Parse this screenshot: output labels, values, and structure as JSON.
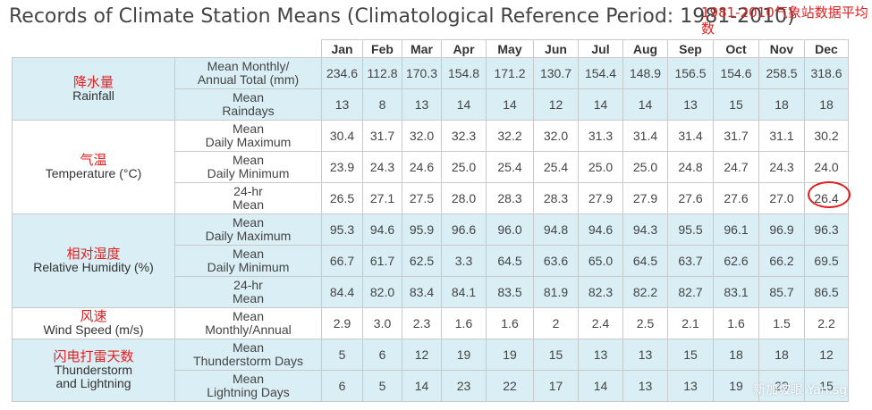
{
  "title": "Records of Climate Station Means (Climatological Reference Period: 1981-2010)",
  "note_cn": "1981-2010气象站数据平均数",
  "months": [
    "Jan",
    "Feb",
    "Mar",
    "Apr",
    "May",
    "Jun",
    "Jul",
    "Aug",
    "Sep",
    "Oct",
    "Nov",
    "Dec"
  ],
  "groups": [
    {
      "cn": "降水量",
      "label": "Rainfall",
      "rows": [
        {
          "stat": [
            "Mean Monthly/",
            "Annual Total (mm)"
          ],
          "values": [
            "234.6",
            "112.8",
            "170.3",
            "154.8",
            "171.2",
            "130.7",
            "154.4",
            "148.9",
            "156.5",
            "154.6",
            "258.5",
            "318.6"
          ]
        },
        {
          "stat": [
            "Mean",
            "Raindays"
          ],
          "values": [
            "13",
            "8",
            "13",
            "14",
            "14",
            "12",
            "14",
            "14",
            "13",
            "15",
            "18",
            "18"
          ]
        }
      ]
    },
    {
      "cn": "气温",
      "label": "Temperature (°C)",
      "rows": [
        {
          "stat": [
            "Mean",
            "Daily Maximum"
          ],
          "values": [
            "30.4",
            "31.7",
            "32.0",
            "32.3",
            "32.2",
            "32.0",
            "31.3",
            "31.4",
            "31.4",
            "31.7",
            "31.1",
            "30.2"
          ]
        },
        {
          "stat": [
            "Mean",
            "Daily Minimum"
          ],
          "values": [
            "23.9",
            "24.3",
            "24.6",
            "25.0",
            "25.4",
            "25.4",
            "25.0",
            "25.0",
            "24.8",
            "24.7",
            "24.3",
            "24.0"
          ]
        },
        {
          "stat": [
            "24-hr",
            "Mean"
          ],
          "values": [
            "26.5",
            "27.1",
            "27.5",
            "28.0",
            "28.3",
            "28.3",
            "27.9",
            "27.9",
            "27.6",
            "27.6",
            "27.0",
            "26.4"
          ]
        }
      ]
    },
    {
      "cn": "相对湿度",
      "label": "Relative Humidity (%)",
      "rows": [
        {
          "stat": [
            "Mean",
            "Daily Maximum"
          ],
          "values": [
            "95.3",
            "94.6",
            "95.9",
            "96.6",
            "96.0",
            "94.8",
            "94.6",
            "94.3",
            "95.5",
            "96.1",
            "96.9",
            "96.3"
          ]
        },
        {
          "stat": [
            "Mean",
            "Daily Minimum"
          ],
          "values": [
            "66.7",
            "61.7",
            "62.5",
            "3.3",
            "64.5",
            "63.6",
            "65.0",
            "64.5",
            "63.7",
            "62.6",
            "66.2",
            "69.5"
          ]
        },
        {
          "stat": [
            "24-hr",
            "Mean"
          ],
          "values": [
            "84.4",
            "82.0",
            "83.4",
            "84.1",
            "83.5",
            "81.9",
            "82.3",
            "82.2",
            "82.7",
            "83.1",
            "85.7",
            "86.5"
          ]
        }
      ]
    },
    {
      "cn": "风速",
      "label": "Wind Speed (m/s)",
      "rows": [
        {
          "stat": [
            "Mean",
            "Monthly/Annual"
          ],
          "values": [
            "2.9",
            "3.0",
            "2.3",
            "1.6",
            "1.6",
            "2",
            "2.4",
            "2.5",
            "2.1",
            "1.6",
            "1.5",
            "2.2"
          ]
        }
      ]
    },
    {
      "cn": "闪电打雷天数",
      "label": "Thunderstorm and Lightning",
      "rows": [
        {
          "stat": [
            "Mean",
            "Thunderstorm Days"
          ],
          "values": [
            "5",
            "6",
            "12",
            "19",
            "19",
            "15",
            "13",
            "13",
            "15",
            "18",
            "18",
            "12"
          ]
        },
        {
          "stat": [
            "Mean",
            "Lightning Days"
          ],
          "values": [
            "6",
            "5",
            "14",
            "23",
            "22",
            "17",
            "14",
            "13",
            "13",
            "19",
            "23",
            "15"
          ]
        }
      ]
    }
  ],
  "watermark": "新加坡眼 Yan.sg"
}
